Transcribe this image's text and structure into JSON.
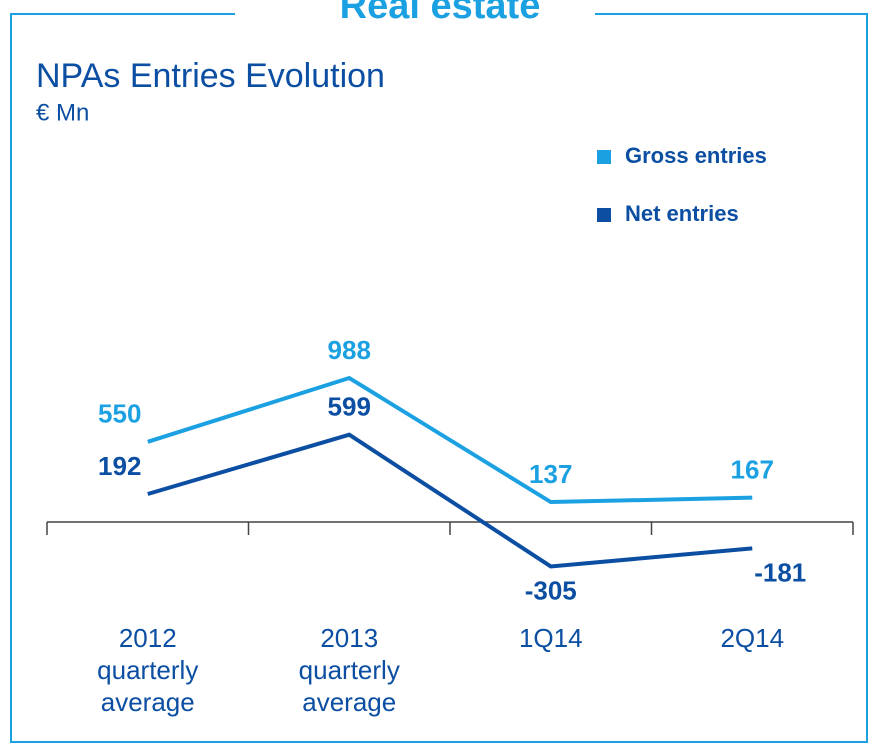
{
  "frame_title": "Real estate",
  "chart_data": {
    "type": "line",
    "title": "NPAs Entries Evolution",
    "subtitle": "€ Mn",
    "categories": [
      "2012 quarterly average",
      "2013 quarterly average",
      "1Q14",
      "2Q14"
    ],
    "series": [
      {
        "name": "Gross entries",
        "color": "#1ba1e2",
        "values": [
          550,
          988,
          137,
          167
        ]
      },
      {
        "name": "Net entries",
        "color": "#0b4ea2",
        "values": [
          192,
          599,
          -305,
          -181
        ]
      }
    ],
    "legend": "upper right"
  }
}
